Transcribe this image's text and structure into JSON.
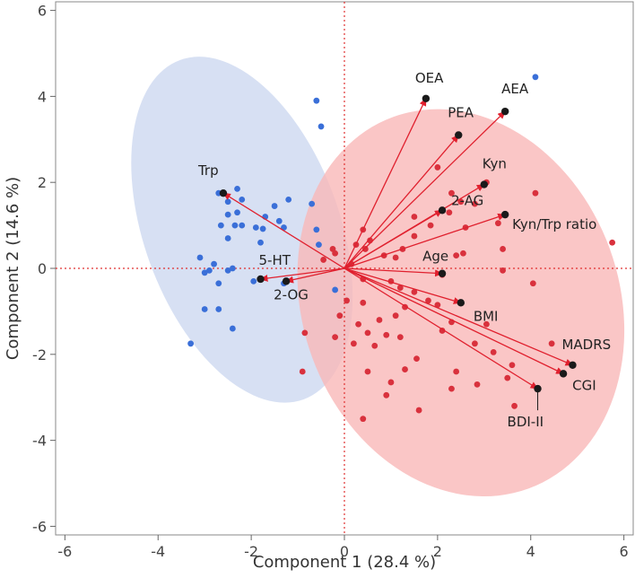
{
  "chart_data": {
    "type": "scatter",
    "title": "",
    "xlabel": "Component 1  (28.4 %)",
    "ylabel": "Component 2  (14.6 %)",
    "xlim": [
      -6.2,
      6.2
    ],
    "ylim": [
      -6.2,
      6.2
    ],
    "xticks": [
      "-6",
      "-4",
      "-2",
      "0",
      "2",
      "4",
      "6"
    ],
    "yticks": [
      "-6",
      "-4",
      "-2",
      "0",
      "2",
      "4",
      "6"
    ],
    "grid": false,
    "colors": {
      "blue_points": "#3a6fd8",
      "red_points": "#d9313d",
      "blue_ellipse": "#c9d6ef",
      "red_ellipse": "#f9b8b8",
      "vectors": "#e0202e",
      "reference_lines": "#e03030"
    },
    "ellipses": [
      {
        "group": "blue",
        "center": [
          -2.2,
          0.9
        ],
        "rx": 2.1,
        "ry": 4.2,
        "rotation_deg": -20
      },
      {
        "group": "red",
        "center": [
          2.5,
          -0.8
        ],
        "rx": 3.4,
        "ry": 4.6,
        "rotation_deg": -20
      }
    ],
    "vectors": [
      {
        "label": "OEA",
        "x": 1.75,
        "y": 3.95
      },
      {
        "label": "PEA",
        "x": 2.45,
        "y": 3.1
      },
      {
        "label": "AEA",
        "x": 3.45,
        "y": 3.65
      },
      {
        "label": "Kyn",
        "x": 3.0,
        "y": 1.95
      },
      {
        "label": "2-AG",
        "x": 2.1,
        "y": 1.35
      },
      {
        "label": "Kyn/Trp ratio",
        "x": 3.45,
        "y": 1.25
      },
      {
        "label": "Age",
        "x": 2.1,
        "y": -0.12
      },
      {
        "label": "BMI",
        "x": 2.5,
        "y": -0.8
      },
      {
        "label": "MADRS",
        "x": 4.9,
        "y": -2.25
      },
      {
        "label": "CGI",
        "x": 4.7,
        "y": -2.45
      },
      {
        "label": "BDI-II",
        "x": 4.15,
        "y": -2.8
      },
      {
        "label": "Trp",
        "x": -2.6,
        "y": 1.75
      },
      {
        "label": "5-HT",
        "x": -1.8,
        "y": -0.25
      },
      {
        "label": "2-OG",
        "x": -1.25,
        "y": -0.3
      }
    ],
    "series": [
      {
        "color": "#3a6fd8",
        "points": [
          [
            -0.6,
            3.9
          ],
          [
            -0.5,
            3.3
          ],
          [
            4.1,
            4.45
          ],
          [
            -2.7,
            1.75
          ],
          [
            -2.3,
            1.85
          ],
          [
            -2.2,
            1.6
          ],
          [
            -2.5,
            1.55
          ],
          [
            -2.3,
            1.3
          ],
          [
            -1.2,
            1.6
          ],
          [
            -1.5,
            1.45
          ],
          [
            -1.7,
            1.2
          ],
          [
            -0.7,
            1.5
          ],
          [
            -2.5,
            1.25
          ],
          [
            -2.65,
            1.0
          ],
          [
            -2.35,
            1.0
          ],
          [
            -2.2,
            1.0
          ],
          [
            -1.9,
            0.95
          ],
          [
            -1.75,
            0.92
          ],
          [
            -1.4,
            1.1
          ],
          [
            -1.3,
            0.95
          ],
          [
            -0.6,
            0.9
          ],
          [
            -2.5,
            0.7
          ],
          [
            -1.8,
            0.6
          ],
          [
            -0.55,
            0.55
          ],
          [
            -3.1,
            0.25
          ],
          [
            -2.8,
            0.1
          ],
          [
            -2.9,
            -0.05
          ],
          [
            -3.0,
            -0.1
          ],
          [
            -2.5,
            -0.05
          ],
          [
            -2.4,
            0.0
          ],
          [
            -2.7,
            -0.35
          ],
          [
            -1.95,
            -0.3
          ],
          [
            -1.3,
            -0.35
          ],
          [
            -0.2,
            -0.5
          ],
          [
            -3.0,
            -0.95
          ],
          [
            -2.7,
            -0.95
          ],
          [
            -2.4,
            -1.4
          ],
          [
            -3.3,
            -1.75
          ]
        ]
      },
      {
        "color": "#d9313d",
        "points": [
          [
            2.0,
            2.35
          ],
          [
            3.05,
            2.0
          ],
          [
            2.3,
            1.75
          ],
          [
            2.5,
            1.55
          ],
          [
            4.1,
            1.75
          ],
          [
            2.25,
            1.3
          ],
          [
            2.8,
            1.5
          ],
          [
            1.5,
            1.2
          ],
          [
            1.85,
            1.0
          ],
          [
            1.5,
            0.75
          ],
          [
            2.6,
            0.95
          ],
          [
            3.3,
            1.05
          ],
          [
            1.25,
            0.45
          ],
          [
            2.4,
            0.3
          ],
          [
            3.4,
            0.45
          ],
          [
            0.4,
            0.9
          ],
          [
            0.55,
            0.65
          ],
          [
            0.25,
            0.55
          ],
          [
            0.45,
            0.45
          ],
          [
            0.85,
            0.3
          ],
          [
            1.1,
            0.25
          ],
          [
            2.55,
            0.35
          ],
          [
            5.75,
            0.6
          ],
          [
            -0.25,
            0.45
          ],
          [
            -0.2,
            0.35
          ],
          [
            -0.45,
            0.2
          ],
          [
            0.15,
            0.1
          ],
          [
            2.1,
            -0.15
          ],
          [
            3.4,
            -0.05
          ],
          [
            4.05,
            -0.35
          ],
          [
            0.4,
            -0.25
          ],
          [
            1.0,
            -0.3
          ],
          [
            1.2,
            -0.45
          ],
          [
            1.5,
            -0.55
          ],
          [
            1.3,
            -0.9
          ],
          [
            1.8,
            -0.75
          ],
          [
            2.0,
            -0.85
          ],
          [
            0.05,
            -0.75
          ],
          [
            0.4,
            -0.8
          ],
          [
            -0.1,
            -1.1
          ],
          [
            0.3,
            -1.3
          ],
          [
            0.75,
            -1.2
          ],
          [
            1.1,
            -1.1
          ],
          [
            0.5,
            -1.5
          ],
          [
            0.9,
            -1.55
          ],
          [
            0.2,
            -1.75
          ],
          [
            -0.2,
            -1.6
          ],
          [
            -0.85,
            -1.5
          ],
          [
            0.65,
            -1.8
          ],
          [
            1.2,
            -1.6
          ],
          [
            2.1,
            -1.45
          ],
          [
            2.3,
            -1.25
          ],
          [
            3.05,
            -1.3
          ],
          [
            2.8,
            -1.75
          ],
          [
            3.2,
            -1.95
          ],
          [
            4.45,
            -1.75
          ],
          [
            1.55,
            -2.1
          ],
          [
            1.3,
            -2.35
          ],
          [
            2.4,
            -2.4
          ],
          [
            3.6,
            -2.25
          ],
          [
            3.5,
            -2.55
          ],
          [
            2.85,
            -2.7
          ],
          [
            0.5,
            -2.4
          ],
          [
            1.0,
            -2.65
          ],
          [
            2.3,
            -2.8
          ],
          [
            -0.9,
            -2.4
          ],
          [
            0.9,
            -2.95
          ],
          [
            3.65,
            -3.2
          ],
          [
            1.6,
            -3.3
          ],
          [
            0.4,
            -3.5
          ]
        ]
      }
    ]
  }
}
